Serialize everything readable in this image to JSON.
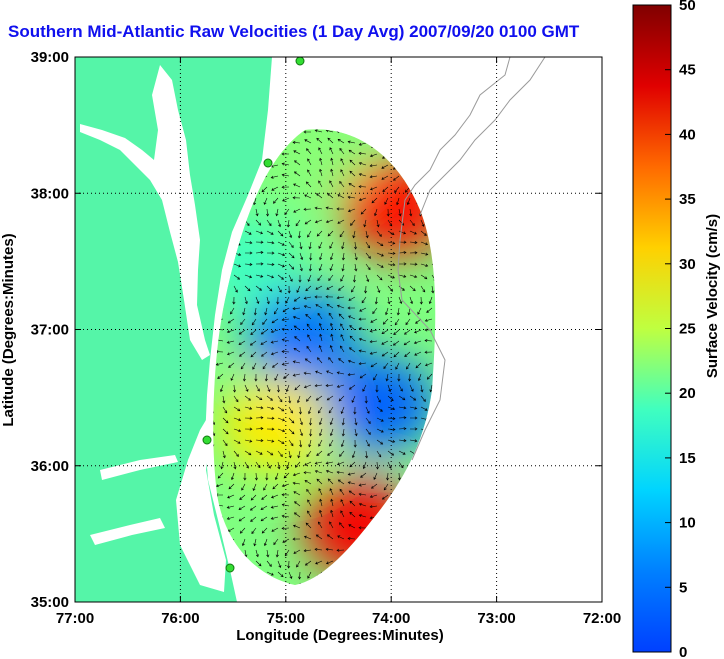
{
  "chart_data": {
    "type": "heatmap",
    "title": "Southern Mid-Atlantic Raw Velocities (1 Day Avg) 2007/09/20 0100 GMT",
    "xlabel": "Longitude (Degrees:Minutes)",
    "ylabel": "Latitude (Degrees:Minutes)",
    "xlim": [
      -77.0,
      -72.0
    ],
    "ylim": [
      35.0,
      39.0
    ],
    "x_ticks": [
      -77,
      -76,
      -75,
      -74,
      -73,
      -72
    ],
    "x_tick_labels": [
      "77:00",
      "76:00",
      "75:00",
      "74:00",
      "73:00",
      "72:00"
    ],
    "y_ticks": [
      35,
      36,
      37,
      38,
      39
    ],
    "y_tick_labels": [
      "35:00",
      "36:00",
      "37:00",
      "38:00",
      "39:00"
    ],
    "grid": true,
    "colorbar": {
      "label": "Surface Velocity (cm/s)",
      "min": 0,
      "max": 50,
      "ticks": [
        0,
        5,
        10,
        15,
        20,
        25,
        30,
        35,
        40,
        45,
        50
      ],
      "tick_labels": [
        "0",
        "5",
        "10",
        "15",
        "20",
        "25",
        "30",
        "35",
        "40",
        "45",
        "50"
      ],
      "colormap": "jet"
    },
    "colors": {
      "land": "#55f5a8",
      "water": "#ffffff",
      "title": "#1010ee",
      "bathymetry": "#9a9a9a",
      "station_marker": "#33dd33"
    },
    "velocity_regions": [
      {
        "lon": -74.85,
        "lat": 36.95,
        "speed": 8
      },
      {
        "lon": -74.1,
        "lat": 36.45,
        "speed": 7
      },
      {
        "lon": -75.1,
        "lat": 36.3,
        "speed": 32
      },
      {
        "lon": -74.3,
        "lat": 35.55,
        "speed": 46
      },
      {
        "lon": -73.95,
        "lat": 37.9,
        "speed": 45
      },
      {
        "lon": -74.75,
        "lat": 38.35,
        "speed": 24
      },
      {
        "lon": -75.4,
        "lat": 37.5,
        "speed": 20
      }
    ]
  }
}
